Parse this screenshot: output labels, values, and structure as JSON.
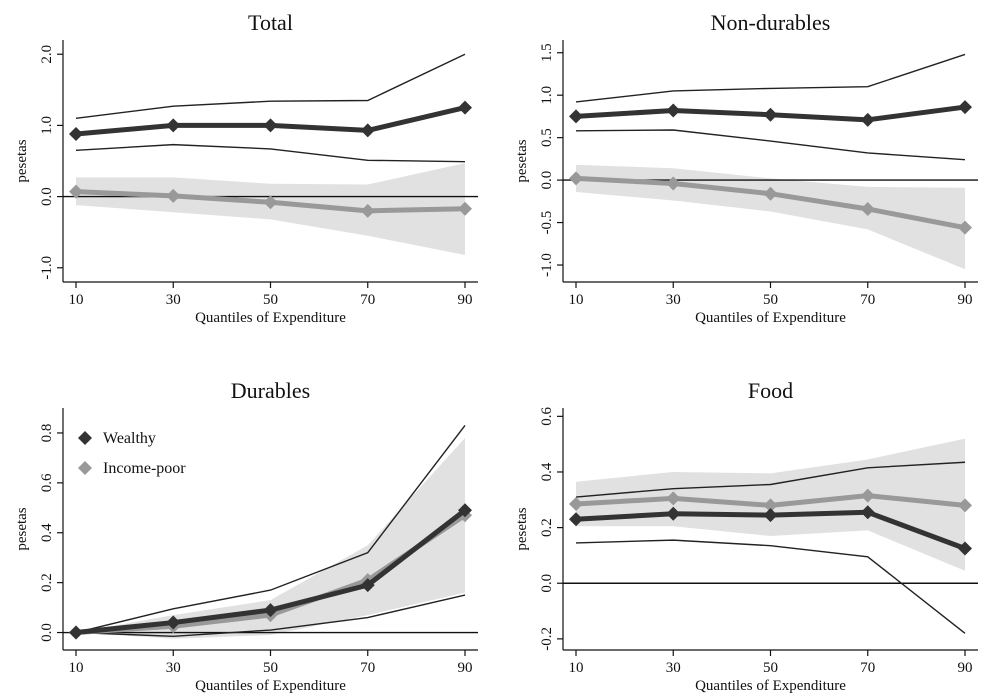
{
  "chart_data": [
    {
      "type": "line",
      "title": "Total",
      "xlabel": "Quantiles of Expenditure",
      "ylabel": "pesetas",
      "x": [
        10,
        30,
        50,
        70,
        90
      ],
      "xticks": [
        "10",
        "30",
        "50",
        "70",
        "90"
      ],
      "ylim": [
        -1.2,
        2.2
      ],
      "yticks": [
        -1.0,
        0.0,
        1.0,
        2.0
      ],
      "ytick_labels": [
        "-1.0",
        "0.0",
        "1.0",
        "2.0"
      ],
      "zero_line": true,
      "series": [
        {
          "color": "#333333",
          "marker": "diamond",
          "values": [
            0.88,
            1.0,
            1.0,
            0.93,
            1.25
          ],
          "ci_upper": [
            1.1,
            1.27,
            1.34,
            1.35,
            2.0
          ],
          "ci_lower": [
            0.65,
            0.73,
            0.67,
            0.51,
            0.49
          ]
        },
        {
          "color": "#999999",
          "marker": "diamond",
          "values": [
            0.07,
            0.01,
            -0.08,
            -0.2,
            -0.17
          ],
          "ci_upper": [
            0.27,
            0.27,
            0.18,
            0.17,
            0.47
          ],
          "ci_lower": [
            -0.12,
            -0.22,
            -0.32,
            -0.55,
            -0.82
          ]
        }
      ]
    },
    {
      "type": "line",
      "title": "Non-durables",
      "xlabel": "Quantiles of Expenditure",
      "ylabel": "pesetas",
      "x": [
        10,
        30,
        50,
        70,
        90
      ],
      "xticks": [
        "10",
        "30",
        "50",
        "70",
        "90"
      ],
      "ylim": [
        -1.2,
        1.65
      ],
      "yticks": [
        -1.0,
        -0.5,
        0.0,
        0.5,
        1.0,
        1.5
      ],
      "ytick_labels": [
        "-1.0",
        "-0.5",
        "0.0",
        "0.5",
        "1.0",
        "1.5"
      ],
      "zero_line": true,
      "series": [
        {
          "color": "#333333",
          "marker": "diamond",
          "values": [
            0.75,
            0.82,
            0.77,
            0.71,
            0.86
          ],
          "ci_upper": [
            0.92,
            1.05,
            1.08,
            1.1,
            1.48
          ],
          "ci_lower": [
            0.58,
            0.59,
            0.46,
            0.32,
            0.24
          ]
        },
        {
          "color": "#999999",
          "marker": "diamond",
          "values": [
            0.02,
            -0.04,
            -0.16,
            -0.34,
            -0.56
          ],
          "ci_upper": [
            0.18,
            0.14,
            0.02,
            -0.08,
            -0.09
          ],
          "ci_lower": [
            -0.14,
            -0.24,
            -0.37,
            -0.58,
            -1.05
          ]
        }
      ]
    },
    {
      "type": "line",
      "title": "Durables",
      "xlabel": "Quantiles of Expenditure",
      "ylabel": "pesetas",
      "x": [
        10,
        30,
        50,
        70,
        90
      ],
      "xticks": [
        "10",
        "30",
        "50",
        "70",
        "90"
      ],
      "ylim": [
        -0.07,
        0.9
      ],
      "yticks": [
        0.0,
        0.2,
        0.4,
        0.6,
        0.8
      ],
      "ytick_labels": [
        "0.0",
        "0.2",
        "0.4",
        "0.6",
        "0.8"
      ],
      "zero_line": true,
      "legend_position": "top-left",
      "series": [
        {
          "name": "Wealthy",
          "color": "#333333",
          "marker": "diamond",
          "values": [
            0.0,
            0.04,
            0.09,
            0.19,
            0.49
          ],
          "ci_upper": [
            0.0,
            0.095,
            0.17,
            0.32,
            0.83
          ],
          "ci_lower": [
            0.0,
            -0.015,
            0.01,
            0.06,
            0.15
          ]
        },
        {
          "name": "Income-poor",
          "color": "#999999",
          "marker": "diamond",
          "values": [
            0.0,
            0.025,
            0.07,
            0.21,
            0.47
          ],
          "ci_upper": [
            0.0,
            0.07,
            0.13,
            0.35,
            0.78
          ],
          "ci_lower": [
            0.0,
            -0.025,
            -0.01,
            0.07,
            0.16
          ]
        }
      ]
    },
    {
      "type": "line",
      "title": "Food",
      "xlabel": "Quantiles of Expenditure",
      "ylabel": "pesetas",
      "x": [
        10,
        30,
        50,
        70,
        90
      ],
      "xticks": [
        "10",
        "30",
        "50",
        "70",
        "90"
      ],
      "ylim": [
        -0.24,
        0.63
      ],
      "yticks": [
        -0.2,
        0.0,
        0.2,
        0.4,
        0.6
      ],
      "ytick_labels": [
        "-0.2",
        "0.0",
        "0.2",
        "0.4",
        "0.6"
      ],
      "zero_line": true,
      "series": [
        {
          "color": "#333333",
          "marker": "diamond",
          "values": [
            0.23,
            0.25,
            0.245,
            0.255,
            0.125
          ],
          "ci_upper": [
            0.31,
            0.34,
            0.355,
            0.415,
            0.435
          ],
          "ci_lower": [
            0.145,
            0.155,
            0.135,
            0.095,
            -0.18
          ]
        },
        {
          "color": "#999999",
          "marker": "diamond",
          "values": [
            0.285,
            0.305,
            0.28,
            0.315,
            0.28
          ],
          "ci_upper": [
            0.365,
            0.4,
            0.395,
            0.445,
            0.52
          ],
          "ci_lower": [
            0.205,
            0.205,
            0.17,
            0.19,
            0.045
          ]
        }
      ]
    }
  ]
}
